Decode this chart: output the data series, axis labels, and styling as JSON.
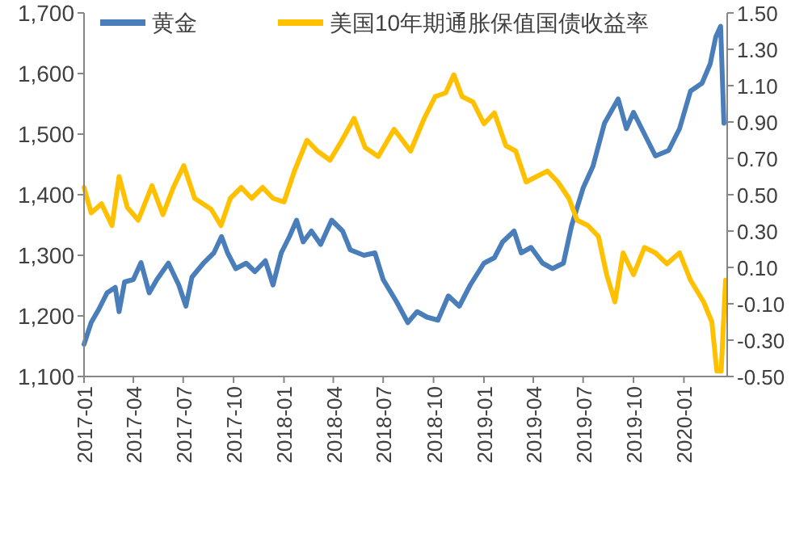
{
  "chart_data": {
    "type": "line",
    "legend": "top",
    "grid": false,
    "marker": "none",
    "line_style": "solid",
    "xlim": [
      "2017-01-01",
      "2020-03-20"
    ],
    "xticks": [
      "2017-01",
      "2017-04",
      "2017-07",
      "2017-10",
      "2018-01",
      "2018-04",
      "2018-07",
      "2018-10",
      "2019-01",
      "2019-04",
      "2019-07",
      "2019-10",
      "2020-01"
    ],
    "ylim": [
      1100,
      1700
    ],
    "yticks": [
      {
        "value": 1100,
        "label": "1,100"
      },
      {
        "value": 1200,
        "label": "1,200"
      },
      {
        "value": 1300,
        "label": "1,300"
      },
      {
        "value": 1400,
        "label": "1,400"
      },
      {
        "value": 1500,
        "label": "1,500"
      },
      {
        "value": 1600,
        "label": "1,600"
      },
      {
        "value": 1700,
        "label": "1,700"
      }
    ],
    "y2lim": [
      -0.5,
      1.5
    ],
    "y2ticks": [
      {
        "value": -0.5,
        "label": "-0.50"
      },
      {
        "value": -0.3,
        "label": "-0.30"
      },
      {
        "value": -0.1,
        "label": "-0.10"
      },
      {
        "value": 0.1,
        "label": "0.10"
      },
      {
        "value": 0.3,
        "label": "0.30"
      },
      {
        "value": 0.5,
        "label": "0.50"
      },
      {
        "value": 0.7,
        "label": "0.70"
      },
      {
        "value": 0.9,
        "label": "0.90"
      },
      {
        "value": 1.1,
        "label": "1.10"
      },
      {
        "value": 1.3,
        "label": "1.30"
      },
      {
        "value": 1.5,
        "label": "1.50"
      }
    ],
    "series": [
      {
        "name": "黄金",
        "color": "#4a7ebb",
        "x": [
          "2017-01-01",
          "2017-01-14",
          "2017-01-28",
          "2017-02-12",
          "2017-02-27",
          "2017-03-06",
          "2017-03-16",
          "2017-04-01",
          "2017-04-15",
          "2017-04-30",
          "2017-05-14",
          "2017-06-04",
          "2017-06-23",
          "2017-07-06",
          "2017-07-17",
          "2017-08-07",
          "2017-08-26",
          "2017-09-09",
          "2017-09-20",
          "2017-10-05",
          "2017-10-24",
          "2017-11-09",
          "2017-11-28",
          "2017-12-12",
          "2017-12-27",
          "2018-01-11",
          "2018-01-24",
          "2018-02-05",
          "2018-02-20",
          "2018-03-09",
          "2018-03-29",
          "2018-04-18",
          "2018-05-02",
          "2018-05-27",
          "2018-06-16",
          "2018-07-01",
          "2018-07-25",
          "2018-08-15",
          "2018-09-01",
          "2018-09-19",
          "2018-10-09",
          "2018-10-28",
          "2018-11-17",
          "2018-12-07",
          "2019-01-01",
          "2019-01-20",
          "2019-02-04",
          "2019-02-25",
          "2019-03-10",
          "2019-03-28",
          "2019-04-18",
          "2019-05-06",
          "2019-05-26",
          "2019-06-10",
          "2019-07-01",
          "2019-07-19",
          "2019-08-09",
          "2019-09-03",
          "2019-09-18",
          "2019-10-01",
          "2019-10-21",
          "2019-11-10",
          "2019-12-04",
          "2019-12-24",
          "2020-01-13",
          "2020-02-03",
          "2020-02-18",
          "2020-02-28",
          "2020-03-08",
          "2020-03-14"
        ],
        "values": [
          1153,
          1189,
          1211,
          1238,
          1247,
          1207,
          1256,
          1260,
          1288,
          1238,
          1260,
          1287,
          1251,
          1216,
          1264,
          1287,
          1304,
          1331,
          1304,
          1278,
          1287,
          1273,
          1291,
          1251,
          1304,
          1331,
          1358,
          1322,
          1340,
          1318,
          1358,
          1340,
          1309,
          1300,
          1304,
          1260,
          1224,
          1189,
          1207,
          1198,
          1193,
          1233,
          1216,
          1251,
          1287,
          1296,
          1322,
          1340,
          1304,
          1313,
          1287,
          1278,
          1287,
          1349,
          1411,
          1447,
          1518,
          1558,
          1509,
          1536,
          1500,
          1464,
          1473,
          1509,
          1571,
          1584,
          1616,
          1660,
          1678,
          1518
        ]
      },
      {
        "name": "美国10年期通胀保值国债收益率",
        "color": "#ffc000",
        "axis": "y2",
        "x": [
          "2017-01-01",
          "2017-01-14",
          "2017-02-02",
          "2017-02-21",
          "2017-03-06",
          "2017-03-21",
          "2017-04-10",
          "2017-05-05",
          "2017-05-25",
          "2017-06-13",
          "2017-07-02",
          "2017-07-22",
          "2017-08-21",
          "2017-09-08",
          "2017-09-25",
          "2017-10-15",
          "2017-11-03",
          "2017-11-23",
          "2017-12-12",
          "2018-01-01",
          "2018-01-20",
          "2018-02-12",
          "2018-03-03",
          "2018-03-26",
          "2018-04-15",
          "2018-05-09",
          "2018-05-29",
          "2018-06-22",
          "2018-07-21",
          "2018-08-20",
          "2018-09-14",
          "2018-10-04",
          "2018-10-23",
          "2018-11-07",
          "2018-11-22",
          "2018-12-12",
          "2019-01-01",
          "2019-01-20",
          "2019-02-10",
          "2019-02-28",
          "2019-03-19",
          "2019-04-07",
          "2019-04-27",
          "2019-05-16",
          "2019-06-05",
          "2019-06-20",
          "2019-07-10",
          "2019-07-29",
          "2019-08-13",
          "2019-08-28",
          "2019-09-12",
          "2019-10-01",
          "2019-10-21",
          "2019-11-10",
          "2019-12-01",
          "2019-12-24",
          "2020-01-13",
          "2020-02-06",
          "2020-02-21",
          "2020-03-01",
          "2020-03-09",
          "2020-03-17"
        ],
        "values": [
          0.54,
          0.4,
          0.45,
          0.33,
          0.6,
          0.43,
          0.36,
          0.55,
          0.39,
          0.54,
          0.66,
          0.48,
          0.42,
          0.33,
          0.48,
          0.54,
          0.48,
          0.54,
          0.48,
          0.46,
          0.63,
          0.8,
          0.74,
          0.69,
          0.79,
          0.92,
          0.76,
          0.71,
          0.86,
          0.74,
          0.92,
          1.04,
          1.06,
          1.16,
          1.04,
          1.01,
          0.89,
          0.95,
          0.77,
          0.74,
          0.57,
          0.6,
          0.63,
          0.57,
          0.48,
          0.36,
          0.33,
          0.27,
          0.06,
          -0.09,
          0.18,
          0.06,
          0.21,
          0.18,
          0.12,
          0.18,
          0.03,
          -0.09,
          -0.2,
          -0.47,
          -0.47,
          0.03
        ]
      }
    ]
  }
}
